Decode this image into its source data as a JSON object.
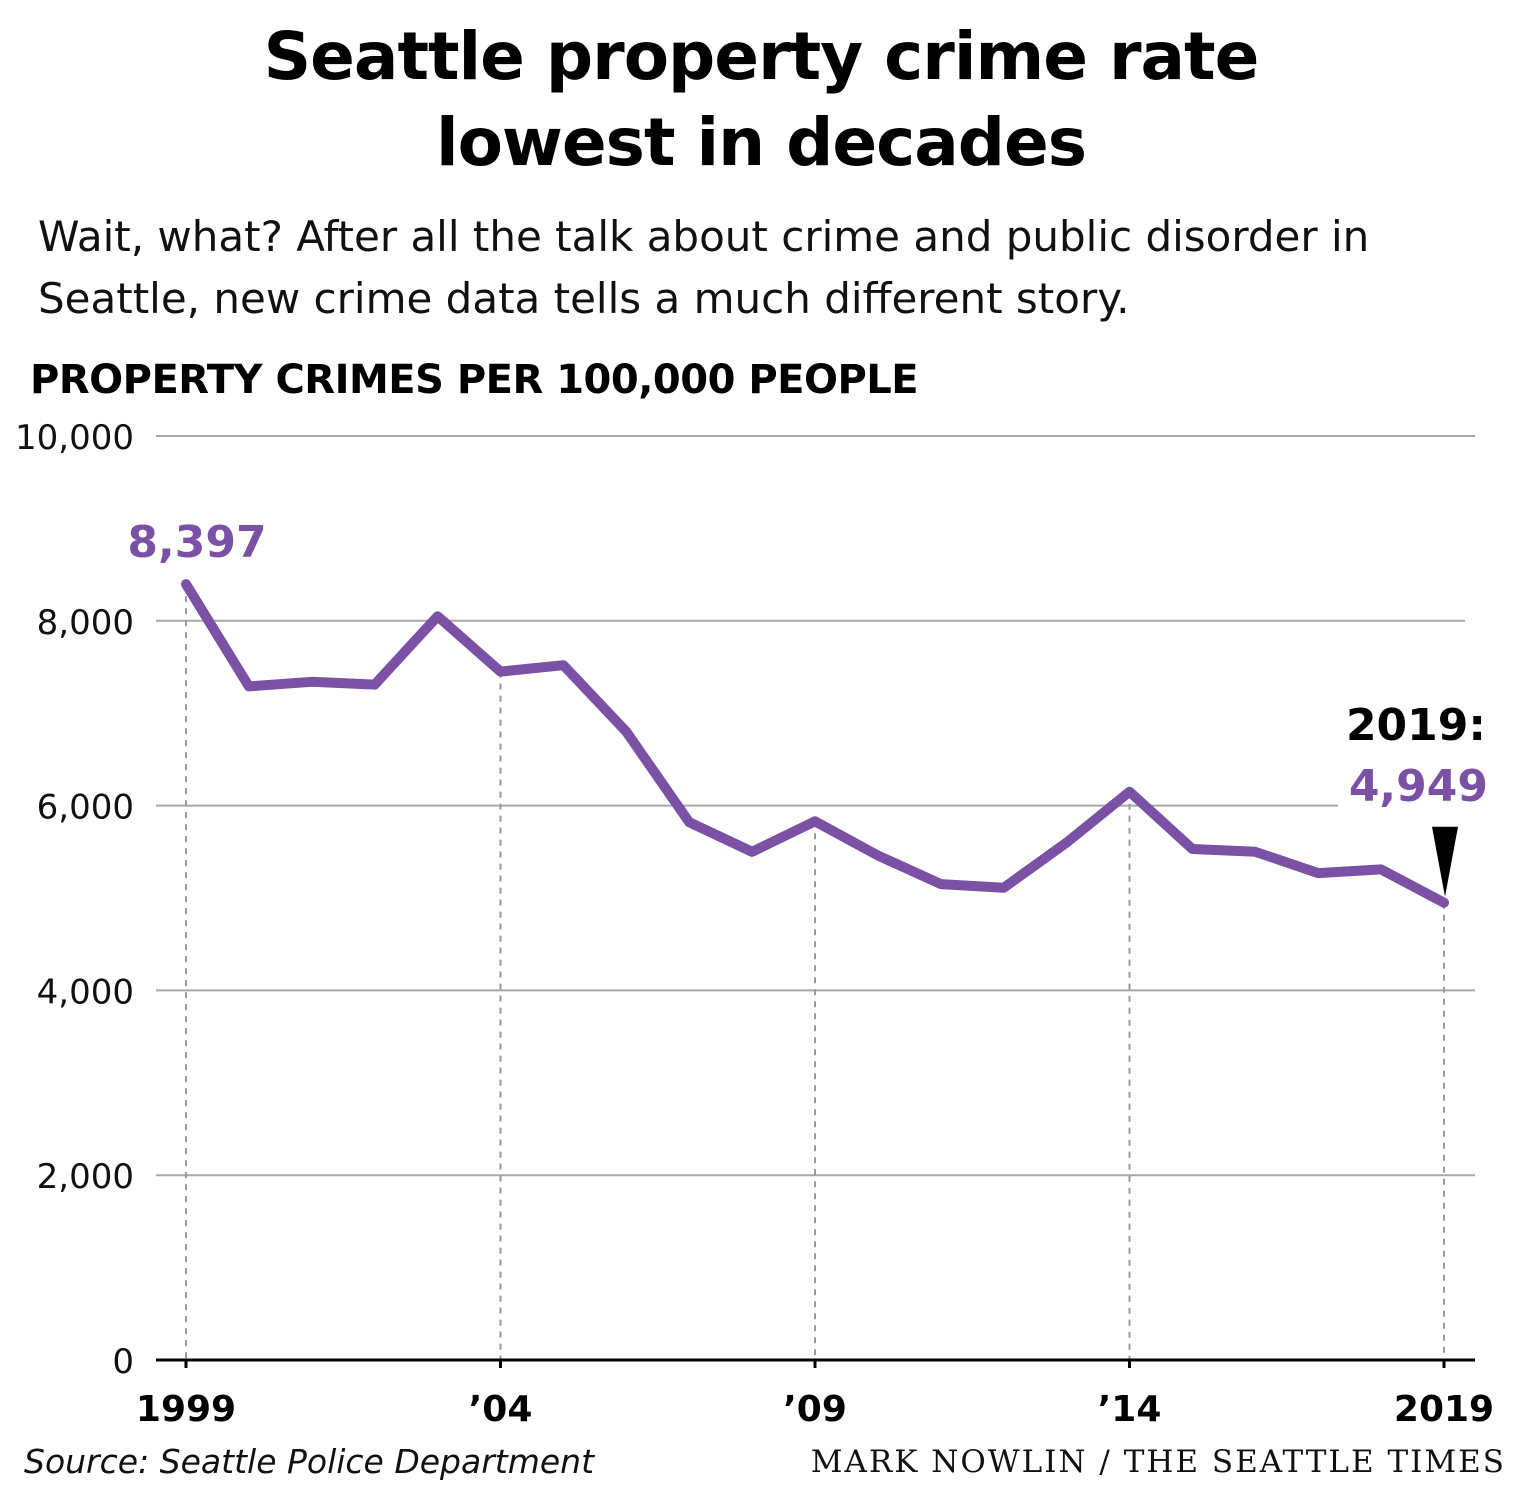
{
  "chart_data": {
    "type": "line",
    "title": "Seattle property crime rate lowest in decades",
    "subtitle": "Wait, what? After all the talk about crime and public disorder in Seattle, new crime data tells a much different story.",
    "ylabel": "PROPERTY CRIMES PER 100,000 PEOPLE",
    "xlabel": "",
    "ylim": [
      0,
      10000
    ],
    "yticks": [
      0,
      2000,
      4000,
      6000,
      8000,
      10000
    ],
    "ytick_labels": [
      "0",
      "2,000",
      "4,000",
      "6,000",
      "8,000",
      "10,000"
    ],
    "xticks": [
      1999,
      2004,
      2009,
      2014,
      2019
    ],
    "xtick_labels": [
      "1999",
      "’04",
      "’09",
      "’14",
      "2019"
    ],
    "grid": true,
    "line_color": "#7b51a6",
    "series": [
      {
        "x": [
          1999,
          2000,
          2001,
          2002,
          2003,
          2004,
          2005,
          2006,
          2007,
          2008,
          2009,
          2010,
          2011,
          2012,
          2013,
          2014,
          2015,
          2016,
          2017,
          2018,
          2019
        ],
        "values": [
          8397,
          7290,
          7340,
          7310,
          8050,
          7450,
          7520,
          6800,
          5820,
          5500,
          5830,
          5460,
          5150,
          5110,
          5600,
          6150,
          5530,
          5500,
          5270,
          5310,
          4949
        ]
      }
    ],
    "annotations": {
      "start_value": "8,397",
      "end_year": "2019:",
      "end_value": "4,949"
    },
    "source": "Source: Seattle Police Department",
    "credit": "MARK NOWLIN / THE SEATTLE TIMES"
  }
}
